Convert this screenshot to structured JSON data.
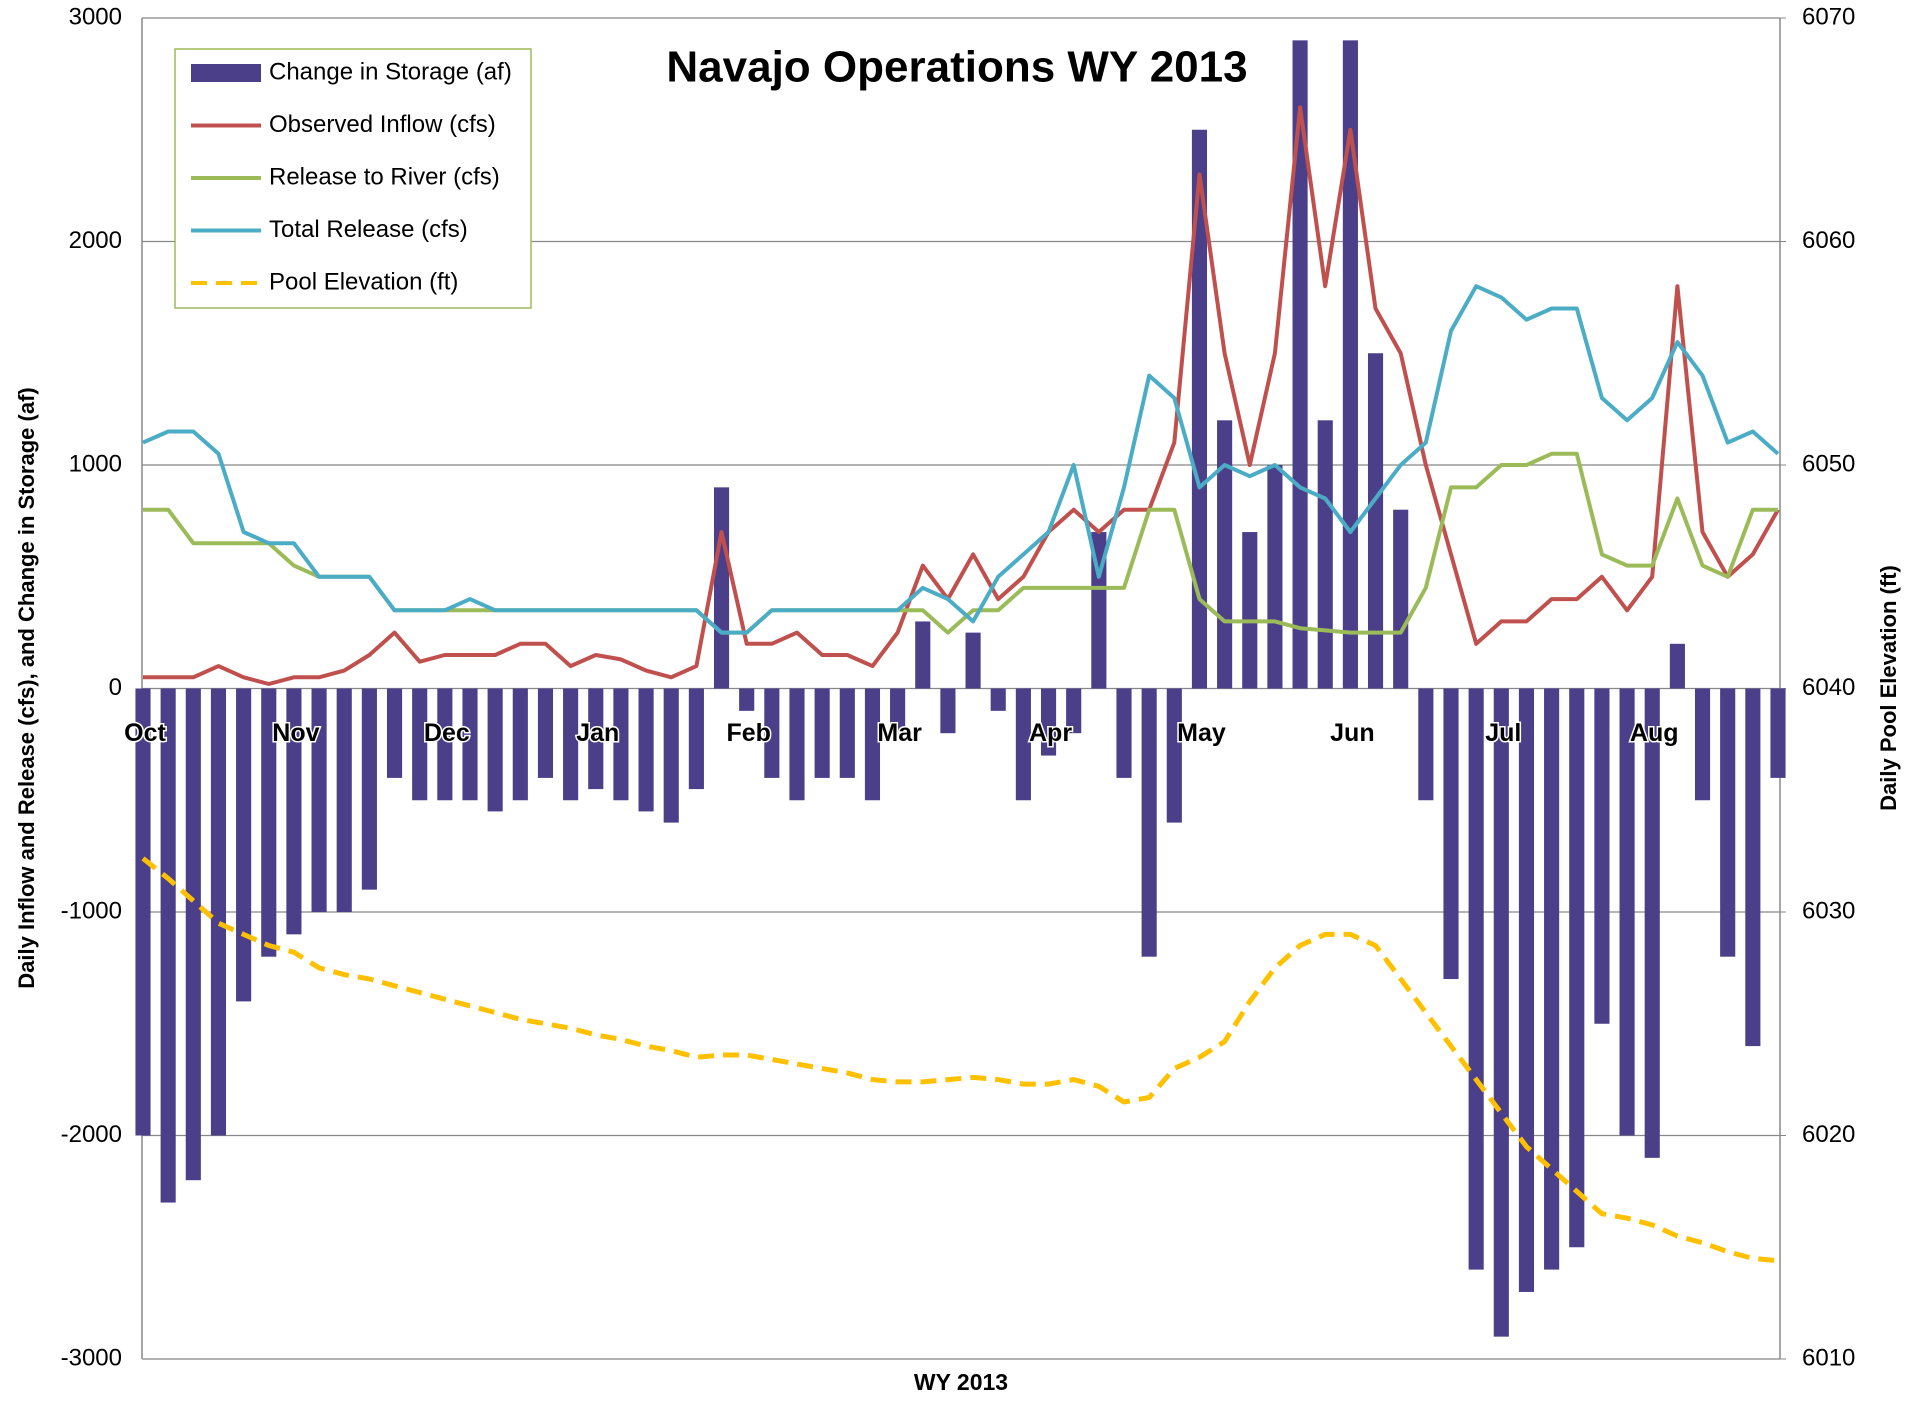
{
  "chart_data": {
    "type": "combo",
    "title": "Navajo Operations WY 2013",
    "xlabel": "WY 2013",
    "ylabel": "Daily Inflow and Release (cfs), and Change in Storage (af)",
    "y2label": "Daily Pool Elevation (ft)",
    "categories": [
      "Oct",
      null,
      null,
      null,
      null,
      null,
      "Nov",
      null,
      null,
      null,
      null,
      null,
      "Dec",
      null,
      null,
      null,
      null,
      null,
      "Jan",
      null,
      null,
      null,
      null,
      null,
      "Feb",
      null,
      null,
      null,
      null,
      null,
      "Mar",
      null,
      null,
      null,
      null,
      null,
      "Apr",
      null,
      null,
      null,
      null,
      null,
      "May",
      null,
      null,
      null,
      null,
      null,
      "Jun",
      null,
      null,
      null,
      null,
      null,
      "Jul",
      null,
      null,
      null,
      null,
      null,
      "Aug",
      null,
      null,
      null,
      null,
      null
    ],
    "ylim": [
      -3000,
      3000
    ],
    "yticks": [
      -3000,
      -2000,
      -1000,
      0,
      1000,
      2000,
      3000
    ],
    "y2lim": [
      6010,
      6070
    ],
    "y2ticks": [
      6010,
      6020,
      6030,
      6040,
      6050,
      6060,
      6070
    ],
    "grid": true,
    "legend": "upper left",
    "series": [
      {
        "name": "Change in Storage (af)",
        "type": "bar",
        "color": "#4b3f8a",
        "values": [
          -2000,
          -2300,
          -2200,
          -2000,
          -1400,
          -1200,
          -1100,
          -1000,
          -1000,
          -900,
          -400,
          -500,
          -500,
          -500,
          -550,
          -500,
          -400,
          -500,
          -450,
          -500,
          -550,
          -600,
          -450,
          900,
          -100,
          -400,
          -500,
          -400,
          -400,
          -500,
          -200,
          300,
          -200,
          250,
          -100,
          -500,
          -300,
          -200,
          700,
          -400,
          -1200,
          -600,
          2500,
          1200,
          700,
          1000,
          2900,
          1200,
          2900,
          1500,
          800,
          -500,
          -1300,
          -2600,
          -2900,
          -2700,
          -2600,
          -2500,
          -1500,
          -2000,
          -2100,
          200,
          -500,
          -1200,
          -1600,
          -400
        ]
      },
      {
        "name": "Observed Inflow (cfs)",
        "type": "line",
        "color": "#c0504d",
        "values": [
          50,
          50,
          50,
          100,
          50,
          20,
          50,
          50,
          80,
          150,
          250,
          120,
          150,
          150,
          150,
          200,
          200,
          100,
          150,
          130,
          80,
          50,
          100,
          700,
          200,
          200,
          250,
          150,
          150,
          100,
          250,
          550,
          400,
          600,
          400,
          500,
          700,
          800,
          700,
          800,
          800,
          1100,
          2300,
          1500,
          1000,
          1500,
          2600,
          1800,
          2500,
          1700,
          1500,
          1000,
          600,
          200,
          300,
          300,
          400,
          400,
          500,
          350,
          500,
          1800,
          700,
          500,
          600,
          800
        ]
      },
      {
        "name": "Release to River (cfs)",
        "type": "line",
        "color": "#9bbb59",
        "values": [
          800,
          800,
          650,
          650,
          650,
          650,
          550,
          500,
          500,
          500,
          350,
          350,
          350,
          350,
          350,
          350,
          350,
          350,
          350,
          350,
          350,
          350,
          350,
          250,
          250,
          350,
          350,
          350,
          350,
          350,
          350,
          350,
          250,
          350,
          350,
          450,
          450,
          450,
          450,
          450,
          800,
          800,
          400,
          300,
          300,
          300,
          270,
          260,
          250,
          250,
          250,
          450,
          900,
          900,
          1000,
          1000,
          1050,
          1050,
          600,
          550,
          550,
          850,
          550,
          500,
          800,
          800
        ]
      },
      {
        "name": "Total Release (cfs)",
        "type": "line",
        "color": "#4bacc6",
        "values": [
          1100,
          1150,
          1150,
          1050,
          700,
          650,
          650,
          500,
          500,
          500,
          350,
          350,
          350,
          400,
          350,
          350,
          350,
          350,
          350,
          350,
          350,
          350,
          350,
          250,
          250,
          350,
          350,
          350,
          350,
          350,
          350,
          450,
          400,
          300,
          500,
          600,
          700,
          1000,
          500,
          900,
          1400,
          1300,
          900,
          1000,
          950,
          1000,
          900,
          850,
          700,
          850,
          1000,
          1100,
          1600,
          1800,
          1750,
          1650,
          1700,
          1700,
          1300,
          1200,
          1300,
          1550,
          1400,
          1100,
          1150,
          1050
        ]
      },
      {
        "name": "Pool Elevation (ft)",
        "type": "line",
        "linestyle": "dashed",
        "axis": "y2",
        "color": "#ffc000",
        "values": [
          6032.4,
          6031.5,
          6030.5,
          6029.5,
          6029,
          6028.5,
          6028.2,
          6027.5,
          6027.2,
          6027,
          6026.7,
          6026.4,
          6026.1,
          6025.8,
          6025.5,
          6025.2,
          6025,
          6024.8,
          6024.5,
          6024.3,
          6024,
          6023.8,
          6023.5,
          6023.6,
          6023.6,
          6023.4,
          6023.2,
          6023,
          6022.8,
          6022.5,
          6022.4,
          6022.4,
          6022.5,
          6022.6,
          6022.5,
          6022.3,
          6022.3,
          6022.5,
          6022.2,
          6021.5,
          6021.7,
          6023,
          6023.5,
          6024.2,
          6026,
          6027.5,
          6028.5,
          6029,
          6029,
          6028.5,
          6027,
          6025.5,
          6024,
          6022.5,
          6021,
          6019.5,
          6018.5,
          6017.5,
          6016.5,
          6016.3,
          6016,
          6015.5,
          6015.2,
          6014.8,
          6014.5,
          6014.4
        ]
      }
    ]
  }
}
